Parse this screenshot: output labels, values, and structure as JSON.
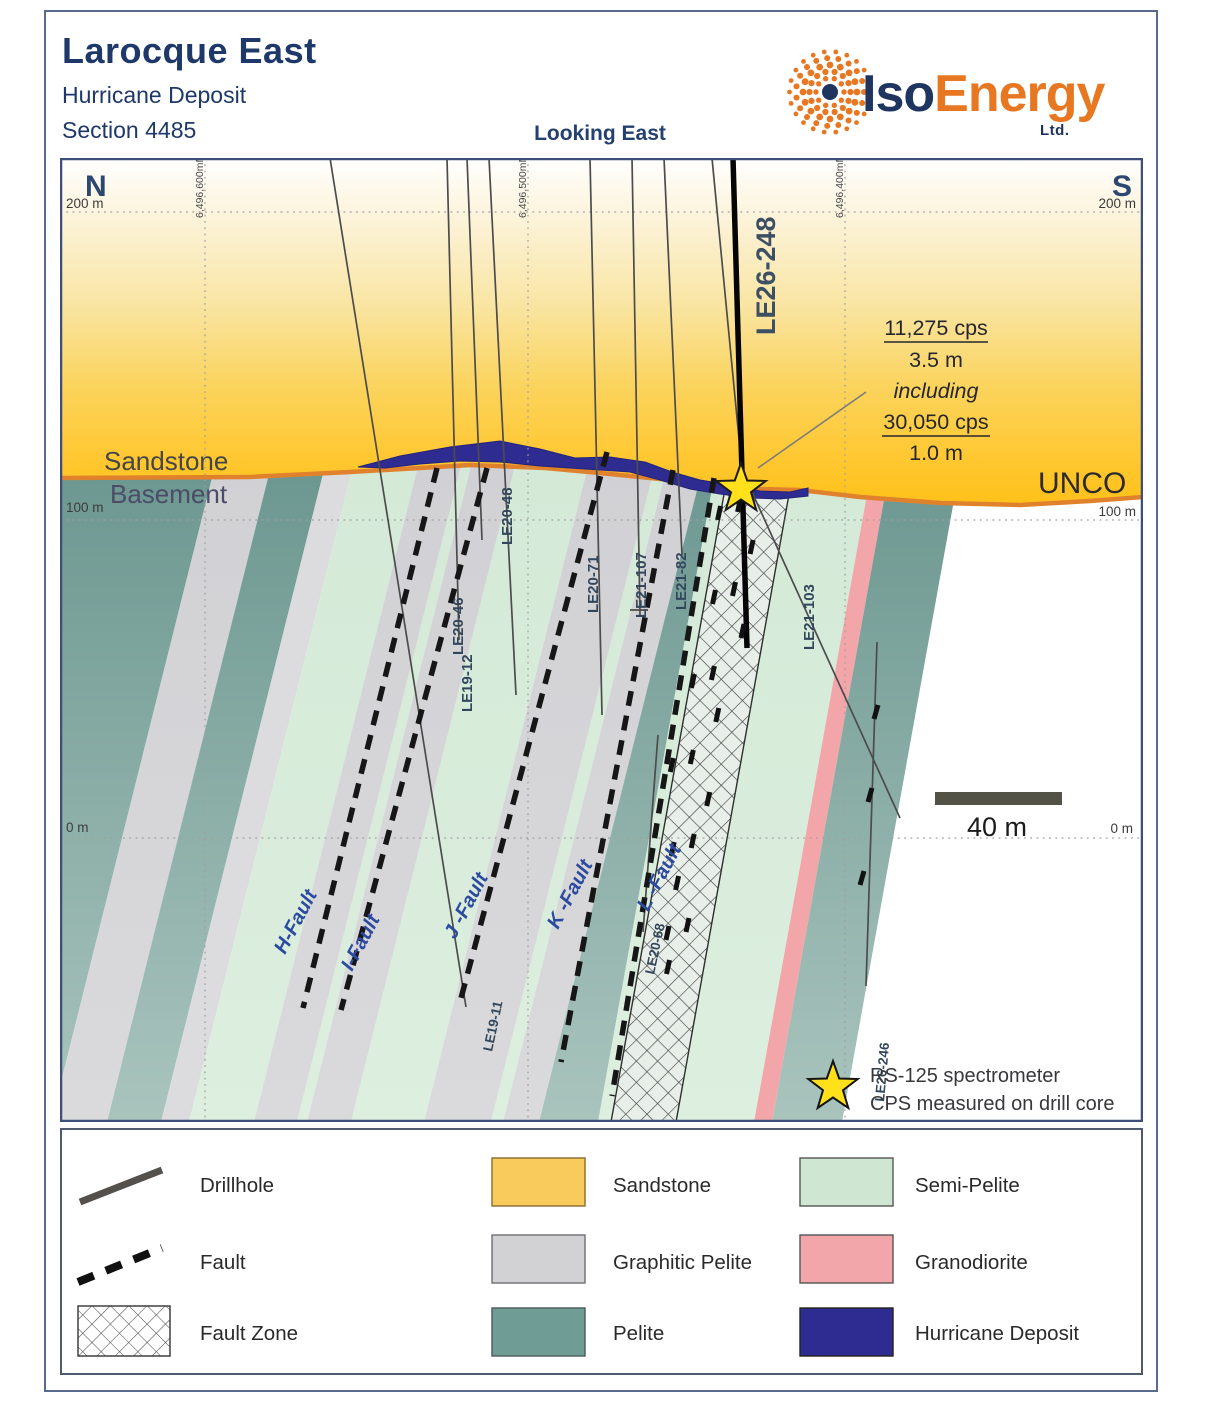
{
  "header": {
    "title": "Larocque East",
    "subtitle": "Hurricane Deposit",
    "section_label": "Section 4485",
    "view_label": "Looking East",
    "logo": {
      "brand_left": "Iso",
      "brand_right": "Energy",
      "suffix": "Ltd."
    }
  },
  "section": {
    "corner_labels": {
      "north": "N",
      "south": "S"
    },
    "elevation_left": [
      "200 m",
      "100 m",
      "0 m"
    ],
    "elevation_right": [
      "200 m",
      "100 m",
      "0 m"
    ],
    "northing_labels": [
      "6,496,600mN",
      "6,496,500mN",
      "6,496,400mN"
    ],
    "geology_labels": {
      "sandstone": "Sandstone",
      "basement": "Basement",
      "unconformity": "UNCO"
    },
    "annotation": {
      "line1": "11,275 cps",
      "line2": "3.5 m",
      "line3": "including",
      "line4": "30,050 cps",
      "line5": "1.0 m"
    },
    "drillholes": [
      {
        "label": "LE26-248",
        "emphasis": true
      },
      {
        "label": "LE20-46"
      },
      {
        "label": "LE20-48"
      },
      {
        "label": "LE19-12"
      },
      {
        "label": "LE19-11"
      },
      {
        "label": "LE20-71"
      },
      {
        "label": "LE21-107"
      },
      {
        "label": "LE21-82"
      },
      {
        "label": "LE20-68"
      },
      {
        "label": "LE21-103"
      },
      {
        "label": "LE26-246"
      }
    ],
    "faults": [
      {
        "label": "H-Fault"
      },
      {
        "label": "I-Fault"
      },
      {
        "label": "J -Fault"
      },
      {
        "label": "K -Fault"
      },
      {
        "label": "L -Fault"
      }
    ],
    "scale_bar": {
      "label": "40 m"
    },
    "star_note": {
      "line1": "RS-125 spectrometer",
      "line2": "CPS measured on drill core"
    }
  },
  "legend": {
    "symbol_items": [
      {
        "label": "Drillhole",
        "symbol": "drillhole-line"
      },
      {
        "label": "Fault",
        "symbol": "fault-dashed-line"
      },
      {
        "label": "Fault Zone",
        "symbol": "fault-zone-hatch"
      }
    ],
    "unit_items_col2": [
      {
        "label": "Sandstone",
        "color": "#f9ca5c"
      },
      {
        "label": "Graphitic Pelite",
        "color": "#d2d2d4"
      },
      {
        "label": "Pelite",
        "color": "#6f9c94"
      }
    ],
    "unit_items_col3": [
      {
        "label": "Semi-Pelite",
        "color": "#cfe6d2"
      },
      {
        "label": "Granodiorite",
        "color": "#f3a6a9"
      },
      {
        "label": "Hurricane Deposit",
        "color": "#2e2c90"
      }
    ]
  },
  "colors": {
    "title_navy": "#1d3869",
    "logo_orange": "#e87722",
    "sandstone_deep": "#ffc21d",
    "unconformity_orange": "#e0812c",
    "pelite_teal": "#6f9c94",
    "semi_pelite_green": "#d2e8d5",
    "graphitic_gray": "#d2d2d4",
    "granodiorite_pink": "#f3a6a9",
    "deposit_navy": "#2e2c90",
    "fault_black": "#161616",
    "star_yellow": "#ffe01a",
    "drill_label_slate": "#33475c",
    "fault_label_blue": "#2b4aa0"
  }
}
